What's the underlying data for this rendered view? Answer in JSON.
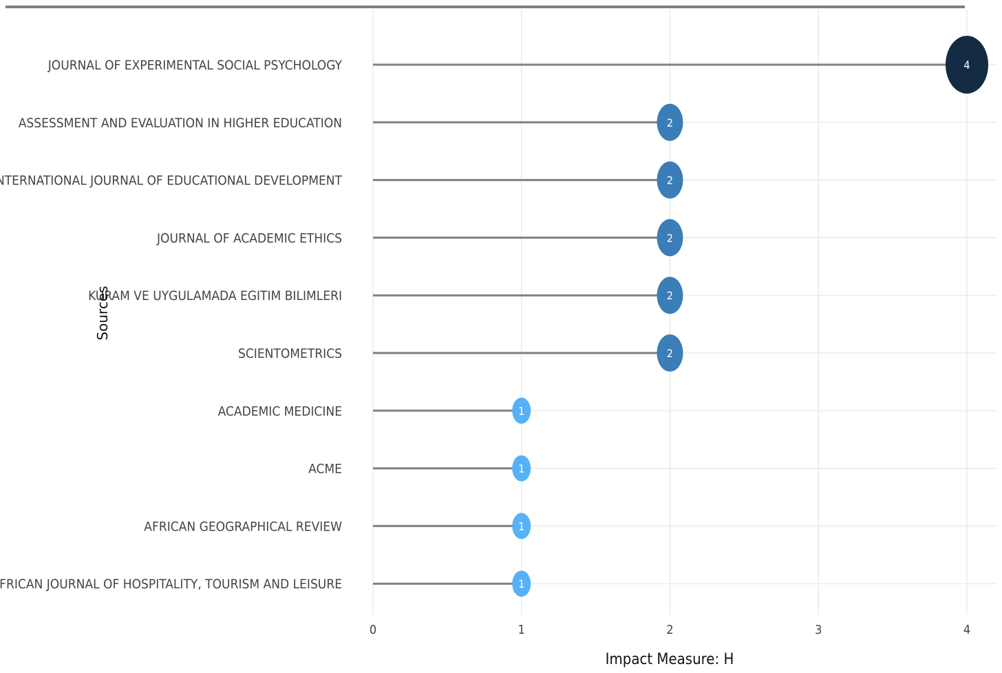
{
  "chart_data": {
    "type": "lollipop",
    "title": "",
    "xlabel": "Impact Measure: H",
    "ylabel": "Sources",
    "xlim": [
      0,
      4
    ],
    "x_ticks": [
      "0",
      "1",
      "2",
      "3",
      "4"
    ],
    "grid": true,
    "categories": [
      "JOURNAL OF EXPERIMENTAL SOCIAL PSYCHOLOGY",
      "ASSESSMENT AND EVALUATION IN HIGHER EDUCATION",
      "INTERNATIONAL JOURNAL OF EDUCATIONAL DEVELOPMENT",
      "JOURNAL OF ACADEMIC ETHICS",
      "KURAM VE UYGULAMADA EGITIM BILIMLERI",
      "SCIENTOMETRICS",
      "ACADEMIC MEDICINE",
      "ACME",
      "AFRICAN GEOGRAPHICAL REVIEW",
      "AFRICAN JOURNAL OF HOSPITALITY, TOURISM AND LEISURE"
    ],
    "values": [
      4,
      2,
      2,
      2,
      2,
      2,
      1,
      1,
      1,
      1
    ],
    "value_labels": [
      "4",
      "2",
      "2",
      "2",
      "2",
      "2",
      "1",
      "1",
      "1",
      "1"
    ],
    "colors": {
      "4": "#132b43",
      "2": "#3a7db7",
      "1": "#56b1f7",
      "stem": "#808080",
      "top_rule": "#808080"
    }
  }
}
